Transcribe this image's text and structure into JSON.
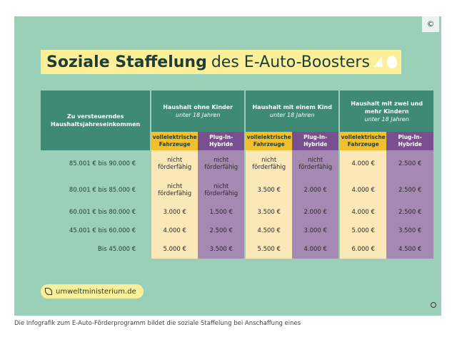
{
  "copyright": "©",
  "title": {
    "bold": "Soziale Staffelung",
    "rest": "des E-Auto-Boosters"
  },
  "header": {
    "income_label": "Zu versteuerndes Haushaltsjahreseinkommen",
    "groups": [
      {
        "line1": "Haushalt ohne Kinder",
        "line2": "unter 18 Jahren"
      },
      {
        "line1": "Haushalt mit einem Kind",
        "line2": "unter 18 Jahren"
      },
      {
        "line1": "Haushalt mit zwei und mehr Kindern",
        "line2": "unter 18 Jahren"
      }
    ],
    "sub": {
      "ev": "vollelektrische Fahrzeuge",
      "phev": "Plug-In-Hybride"
    }
  },
  "rows": [
    {
      "income": "85.001 € bis 90.000 €",
      "cells": [
        "nicht förderfähig",
        "nicht förderfähig",
        "nicht förderfähig",
        "nicht förderfähig",
        "4.000 €",
        "2.500 €"
      ]
    },
    {
      "income": "80.001 € bis 85.000 €",
      "cells": [
        "nicht förderfähig",
        "nicht förderfähig",
        "3.500 €",
        "2.000 €",
        "4.000 €",
        "2.500 €"
      ]
    },
    {
      "income": "60.001 € bis 80.000 €",
      "cells": [
        "3.000 €",
        "1.500 €",
        "3.500 €",
        "2.000 €",
        "4.000 €",
        "2.500 €"
      ]
    },
    {
      "income": "45.001 € bis 60.000 €",
      "cells": [
        "4.000 €",
        "2.500 €",
        "4.500 €",
        "3.000 €",
        "5.000 €",
        "3.500 €"
      ]
    },
    {
      "income": "Bis  45.000 €",
      "cells": [
        "5.000 €",
        "3.500 €",
        "5.500 €",
        "4.000 €",
        "6.000 €",
        "4.500 €"
      ]
    }
  ],
  "url": "umweltministerium.de",
  "caption": "Die Infografik zum E-Auto-Förderprogramm bildet die soziale Staffelung bei Anschaffung eines"
}
